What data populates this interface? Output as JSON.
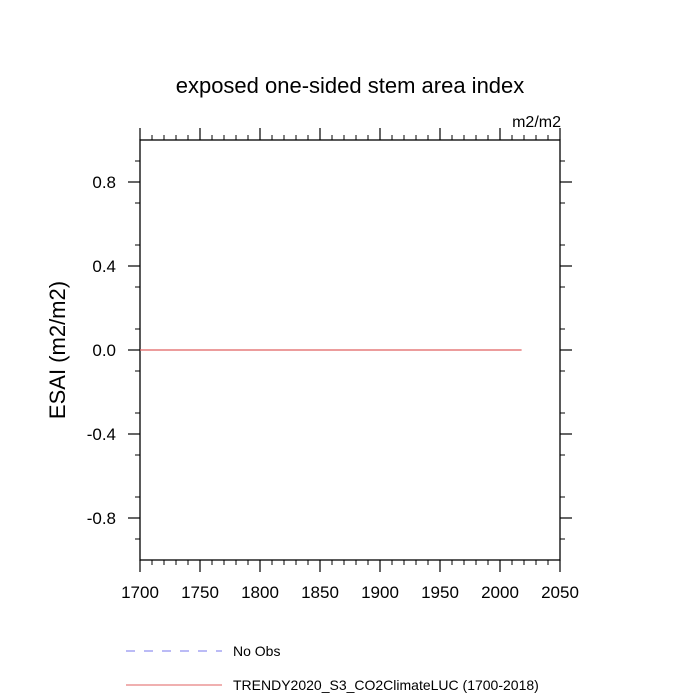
{
  "chart_data": {
    "type": "line",
    "title": "exposed one-sided stem area index",
    "units": "m2/m2",
    "xlabel": "",
    "ylabel": "ESAI  (m2/m2)",
    "xlim": [
      1700,
      2050
    ],
    "ylim": [
      -1.0,
      1.0
    ],
    "x_ticks": [
      1700,
      1750,
      1800,
      1850,
      1900,
      1950,
      2000,
      2050
    ],
    "x_tick_labels": [
      "1700",
      "1750",
      "1800",
      "1850",
      "1900",
      "1950",
      "2000",
      "2050"
    ],
    "y_ticks": [
      0.8,
      0.4,
      0.0,
      -0.4,
      -0.8
    ],
    "y_tick_labels": [
      "0.8",
      "0.4",
      "0.0",
      "-0.4",
      "-0.8"
    ],
    "grid": false,
    "legend_position": "bottom",
    "series": [
      {
        "name": "No Obs",
        "color": "#7777ee",
        "dash": "dashed",
        "x": [],
        "y": []
      },
      {
        "name": "TRENDY2020_S3_CO2ClimateLUC (1700-2018)",
        "color": "#e06060",
        "dash": "solid",
        "x": [
          1700,
          2018
        ],
        "y": [
          0.0,
          0.0
        ]
      }
    ]
  }
}
